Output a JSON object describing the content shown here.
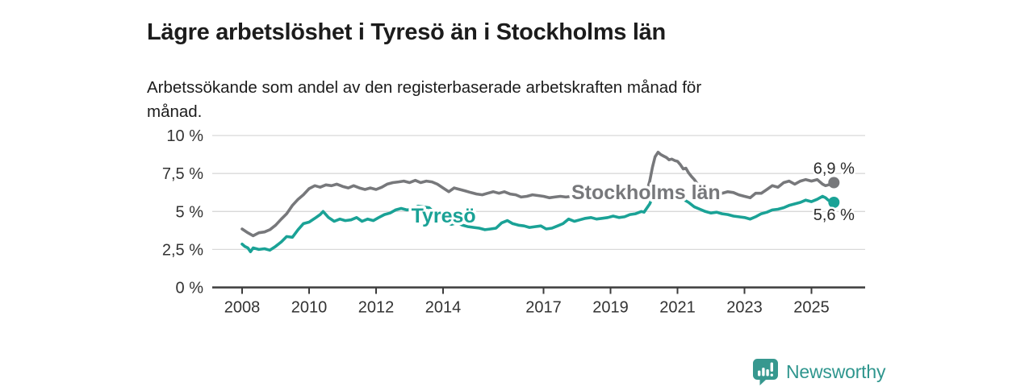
{
  "title": "Lägre arbetslöshet i Tyresö än i Stockholms län",
  "subtitle": "Arbetssökande som andel av den registerbaserade arbetskraften månad för månad.",
  "branding": {
    "logo_text": "Newsworthy",
    "logo_icon": "bar-chart-speech-bubble-icon",
    "logo_color": "#37988f",
    "logo_text_color": "#2f968e"
  },
  "colors": {
    "background": "#ffffff",
    "grid": "#d9d9d9",
    "axis": "#3c3c3c",
    "tick_text": "#333333",
    "title_text": "#1c1c1c",
    "end_label_text": "#2b2b2b"
  },
  "chart_data": {
    "type": "line",
    "unit": "percent",
    "grid": true,
    "legend_position": "inline-labels",
    "x_axis": {
      "range": [
        2007.1,
        2026.6
      ],
      "ticks": [
        2008,
        2010,
        2012,
        2014,
        2017,
        2019,
        2021,
        2023,
        2025
      ]
    },
    "y_axis": {
      "range": [
        0,
        10
      ],
      "ticks": [
        {
          "value": 0,
          "label": "0 %"
        },
        {
          "value": 2.5,
          "label": "2,5 %"
        },
        {
          "value": 5,
          "label": "5 %"
        },
        {
          "value": 7.5,
          "label": "7,5 %"
        },
        {
          "value": 10,
          "label": "10 %"
        }
      ]
    },
    "series": [
      {
        "name": "Stockholms län",
        "color": "#77787b",
        "end_label": "6,9 %",
        "end_value": 6.9,
        "label_anchor": {
          "x": 2017.83,
          "y": 5.81
        },
        "end_label_offset": -11,
        "points": [
          [
            2008.0,
            3.85
          ],
          [
            2008.17,
            3.6
          ],
          [
            2008.33,
            3.4
          ],
          [
            2008.5,
            3.6
          ],
          [
            2008.67,
            3.65
          ],
          [
            2008.83,
            3.8
          ],
          [
            2009.0,
            4.1
          ],
          [
            2009.17,
            4.5
          ],
          [
            2009.33,
            4.85
          ],
          [
            2009.5,
            5.4
          ],
          [
            2009.67,
            5.8
          ],
          [
            2009.83,
            6.1
          ],
          [
            2010.0,
            6.5
          ],
          [
            2010.17,
            6.7
          ],
          [
            2010.33,
            6.6
          ],
          [
            2010.5,
            6.75
          ],
          [
            2010.67,
            6.7
          ],
          [
            2010.83,
            6.8
          ],
          [
            2011.0,
            6.65
          ],
          [
            2011.17,
            6.55
          ],
          [
            2011.33,
            6.7
          ],
          [
            2011.5,
            6.55
          ],
          [
            2011.67,
            6.45
          ],
          [
            2011.83,
            6.55
          ],
          [
            2012.0,
            6.45
          ],
          [
            2012.17,
            6.6
          ],
          [
            2012.33,
            6.8
          ],
          [
            2012.5,
            6.9
          ],
          [
            2012.67,
            6.95
          ],
          [
            2012.83,
            7.0
          ],
          [
            2013.0,
            6.9
          ],
          [
            2013.17,
            7.05
          ],
          [
            2013.33,
            6.9
          ],
          [
            2013.5,
            7.0
          ],
          [
            2013.67,
            6.95
          ],
          [
            2013.83,
            6.8
          ],
          [
            2014.0,
            6.55
          ],
          [
            2014.17,
            6.3
          ],
          [
            2014.33,
            6.55
          ],
          [
            2014.5,
            6.45
          ],
          [
            2014.67,
            6.35
          ],
          [
            2014.83,
            6.25
          ],
          [
            2015.0,
            6.15
          ],
          [
            2015.17,
            6.1
          ],
          [
            2015.33,
            6.2
          ],
          [
            2015.5,
            6.3
          ],
          [
            2015.67,
            6.2
          ],
          [
            2015.83,
            6.3
          ],
          [
            2016.0,
            6.15
          ],
          [
            2016.17,
            6.1
          ],
          [
            2016.33,
            5.95
          ],
          [
            2016.5,
            6.0
          ],
          [
            2016.67,
            6.1
          ],
          [
            2016.83,
            6.05
          ],
          [
            2017.0,
            6.0
          ],
          [
            2017.17,
            5.9
          ],
          [
            2017.33,
            5.95
          ],
          [
            2017.5,
            6.0
          ],
          [
            2017.67,
            5.95
          ],
          [
            2017.83,
            6.0
          ],
          [
            2018.0,
            5.95
          ],
          [
            2018.17,
            6.0
          ],
          [
            2018.33,
            5.95
          ],
          [
            2018.5,
            6.0
          ],
          [
            2018.67,
            5.95
          ],
          [
            2018.83,
            6.0
          ],
          [
            2019.0,
            5.95
          ],
          [
            2019.17,
            5.9
          ],
          [
            2019.33,
            5.95
          ],
          [
            2019.5,
            5.9
          ],
          [
            2019.67,
            5.95
          ],
          [
            2019.83,
            6.0
          ],
          [
            2020.0,
            6.1
          ],
          [
            2020.08,
            6.3
          ],
          [
            2020.17,
            7.0
          ],
          [
            2020.25,
            7.9
          ],
          [
            2020.33,
            8.6
          ],
          [
            2020.42,
            8.9
          ],
          [
            2020.5,
            8.75
          ],
          [
            2020.58,
            8.65
          ],
          [
            2020.67,
            8.55
          ],
          [
            2020.75,
            8.4
          ],
          [
            2020.83,
            8.45
          ],
          [
            2020.92,
            8.35
          ],
          [
            2021.0,
            8.3
          ],
          [
            2021.08,
            8.1
          ],
          [
            2021.17,
            7.8
          ],
          [
            2021.25,
            7.85
          ],
          [
            2021.33,
            7.55
          ],
          [
            2021.42,
            7.3
          ],
          [
            2021.5,
            7.1
          ],
          [
            2021.58,
            6.85
          ],
          [
            2021.67,
            6.8
          ],
          [
            2021.75,
            6.7
          ],
          [
            2021.83,
            6.5
          ],
          [
            2021.92,
            6.4
          ],
          [
            2022.0,
            6.35
          ],
          [
            2022.17,
            6.3
          ],
          [
            2022.33,
            6.2
          ],
          [
            2022.5,
            6.3
          ],
          [
            2022.67,
            6.25
          ],
          [
            2022.83,
            6.1
          ],
          [
            2023.0,
            6.0
          ],
          [
            2023.17,
            5.9
          ],
          [
            2023.33,
            6.2
          ],
          [
            2023.5,
            6.2
          ],
          [
            2023.67,
            6.45
          ],
          [
            2023.83,
            6.7
          ],
          [
            2024.0,
            6.6
          ],
          [
            2024.17,
            6.9
          ],
          [
            2024.33,
            7.0
          ],
          [
            2024.5,
            6.8
          ],
          [
            2024.67,
            7.0
          ],
          [
            2024.83,
            7.1
          ],
          [
            2025.0,
            7.0
          ],
          [
            2025.17,
            7.1
          ],
          [
            2025.33,
            6.8
          ],
          [
            2025.42,
            6.7
          ],
          [
            2025.58,
            6.8
          ],
          [
            2025.67,
            6.9
          ]
        ]
      },
      {
        "name": "Tyresö",
        "color": "#1aa296",
        "end_label": "5,6 %",
        "end_value": 5.6,
        "label_anchor": {
          "x": 2013.05,
          "y": 4.27
        },
        "end_label_offset": 22,
        "points": [
          [
            2008.0,
            2.85
          ],
          [
            2008.08,
            2.7
          ],
          [
            2008.17,
            2.6
          ],
          [
            2008.25,
            2.35
          ],
          [
            2008.33,
            2.6
          ],
          [
            2008.5,
            2.5
          ],
          [
            2008.67,
            2.55
          ],
          [
            2008.83,
            2.45
          ],
          [
            2009.0,
            2.7
          ],
          [
            2009.17,
            3.0
          ],
          [
            2009.33,
            3.35
          ],
          [
            2009.5,
            3.3
          ],
          [
            2009.67,
            3.8
          ],
          [
            2009.83,
            4.2
          ],
          [
            2010.0,
            4.3
          ],
          [
            2010.17,
            4.55
          ],
          [
            2010.33,
            4.8
          ],
          [
            2010.42,
            5.0
          ],
          [
            2010.58,
            4.6
          ],
          [
            2010.75,
            4.35
          ],
          [
            2010.92,
            4.5
          ],
          [
            2011.08,
            4.4
          ],
          [
            2011.25,
            4.45
          ],
          [
            2011.42,
            4.6
          ],
          [
            2011.58,
            4.35
          ],
          [
            2011.75,
            4.5
          ],
          [
            2011.92,
            4.4
          ],
          [
            2012.08,
            4.6
          ],
          [
            2012.25,
            4.8
          ],
          [
            2012.42,
            4.9
          ],
          [
            2012.58,
            5.1
          ],
          [
            2012.75,
            5.2
          ],
          [
            2012.92,
            5.1
          ],
          [
            2013.08,
            5.15
          ],
          [
            2013.25,
            5.35
          ],
          [
            2013.42,
            5.3
          ],
          [
            2013.58,
            5.25
          ],
          [
            2013.75,
            4.9
          ],
          [
            2013.92,
            4.6
          ],
          [
            2014.08,
            4.3
          ],
          [
            2014.25,
            4.15
          ],
          [
            2014.42,
            4.25
          ],
          [
            2014.58,
            4.1
          ],
          [
            2014.75,
            4.0
          ],
          [
            2014.92,
            3.95
          ],
          [
            2015.08,
            3.9
          ],
          [
            2015.25,
            3.8
          ],
          [
            2015.42,
            3.85
          ],
          [
            2015.58,
            3.9
          ],
          [
            2015.75,
            4.25
          ],
          [
            2015.92,
            4.4
          ],
          [
            2016.08,
            4.2
          ],
          [
            2016.25,
            4.1
          ],
          [
            2016.42,
            4.05
          ],
          [
            2016.58,
            3.95
          ],
          [
            2016.75,
            4.0
          ],
          [
            2016.92,
            4.05
          ],
          [
            2017.08,
            3.85
          ],
          [
            2017.25,
            3.9
          ],
          [
            2017.42,
            4.05
          ],
          [
            2017.58,
            4.2
          ],
          [
            2017.75,
            4.5
          ],
          [
            2017.92,
            4.35
          ],
          [
            2018.08,
            4.45
          ],
          [
            2018.25,
            4.55
          ],
          [
            2018.42,
            4.6
          ],
          [
            2018.58,
            4.5
          ],
          [
            2018.75,
            4.55
          ],
          [
            2018.92,
            4.6
          ],
          [
            2019.08,
            4.7
          ],
          [
            2019.25,
            4.6
          ],
          [
            2019.42,
            4.65
          ],
          [
            2019.58,
            4.8
          ],
          [
            2019.75,
            4.85
          ],
          [
            2019.92,
            5.0
          ],
          [
            2020.0,
            4.95
          ],
          [
            2020.17,
            5.5
          ],
          [
            2020.33,
            6.3
          ],
          [
            2020.42,
            6.5
          ],
          [
            2020.5,
            6.4
          ],
          [
            2020.58,
            6.3
          ],
          [
            2020.67,
            6.2
          ],
          [
            2020.83,
            6.1
          ],
          [
            2021.0,
            5.9
          ],
          [
            2021.17,
            5.8
          ],
          [
            2021.33,
            5.6
          ],
          [
            2021.5,
            5.3
          ],
          [
            2021.67,
            5.15
          ],
          [
            2021.83,
            5.0
          ],
          [
            2022.0,
            4.9
          ],
          [
            2022.17,
            4.95
          ],
          [
            2022.33,
            4.85
          ],
          [
            2022.5,
            4.8
          ],
          [
            2022.67,
            4.7
          ],
          [
            2022.83,
            4.65
          ],
          [
            2023.0,
            4.6
          ],
          [
            2023.17,
            4.5
          ],
          [
            2023.33,
            4.65
          ],
          [
            2023.5,
            4.85
          ],
          [
            2023.67,
            4.95
          ],
          [
            2023.83,
            5.1
          ],
          [
            2024.0,
            5.15
          ],
          [
            2024.17,
            5.25
          ],
          [
            2024.33,
            5.4
          ],
          [
            2024.5,
            5.5
          ],
          [
            2024.67,
            5.6
          ],
          [
            2024.83,
            5.75
          ],
          [
            2025.0,
            5.65
          ],
          [
            2025.17,
            5.8
          ],
          [
            2025.33,
            6.0
          ],
          [
            2025.42,
            5.9
          ],
          [
            2025.5,
            5.75
          ],
          [
            2025.58,
            5.65
          ],
          [
            2025.67,
            5.6
          ]
        ]
      }
    ]
  }
}
